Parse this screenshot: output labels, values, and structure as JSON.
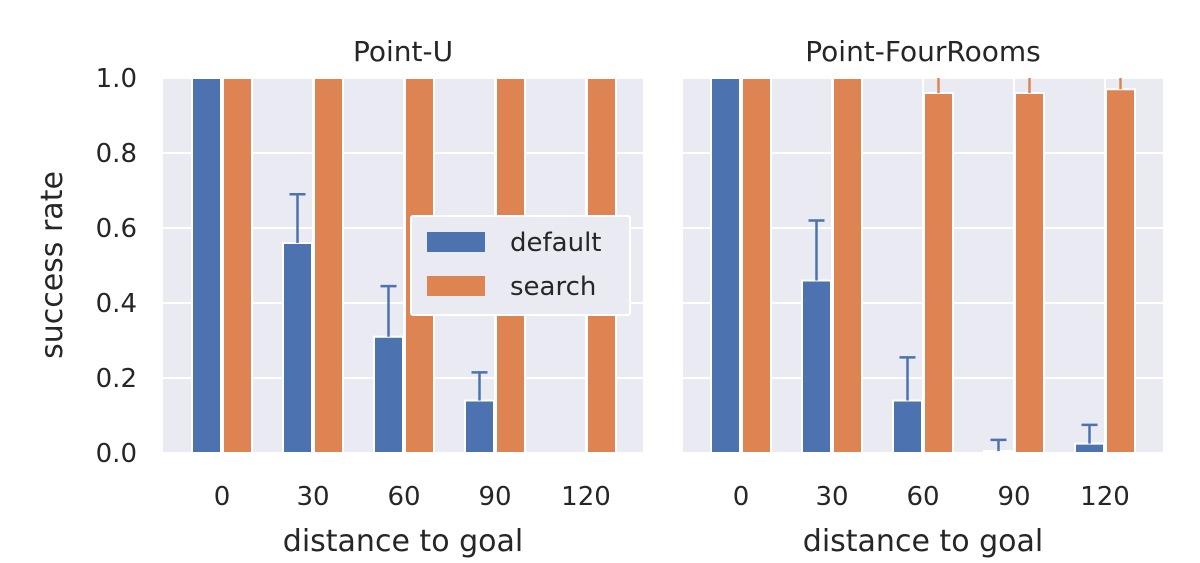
{
  "chart_data": [
    {
      "type": "bar",
      "title": "Point-U",
      "xlabel": "distance to goal",
      "ylabel": "success rate",
      "ylim": [
        0,
        1.0
      ],
      "yticks": [
        "0.0",
        "0.2",
        "0.4",
        "0.6",
        "0.8",
        "1.0"
      ],
      "grid": true,
      "legend": "center-right",
      "categories": [
        "0",
        "30",
        "60",
        "90",
        "120"
      ],
      "series": [
        {
          "name": "default",
          "color": "#4c72b0",
          "values": [
            1.0,
            0.56,
            0.31,
            0.14,
            0.0
          ],
          "err_upper": [
            1.0,
            0.69,
            0.445,
            0.215,
            0.0
          ]
        },
        {
          "name": "search",
          "color": "#dd8452",
          "values": [
            1.0,
            1.0,
            1.0,
            1.0,
            1.0
          ],
          "err_upper": [
            1.0,
            1.0,
            1.0,
            1.0,
            1.0
          ]
        }
      ]
    },
    {
      "type": "bar",
      "title": "Point-FourRooms",
      "xlabel": "distance to goal",
      "ylabel": "",
      "ylim": [
        0,
        1.0
      ],
      "grid": true,
      "categories": [
        "0",
        "30",
        "60",
        "90",
        "120"
      ],
      "series": [
        {
          "name": "default",
          "color": "#4c72b0",
          "values": [
            1.0,
            0.46,
            0.14,
            0.005,
            0.025
          ],
          "err_upper": [
            1.0,
            0.62,
            0.255,
            0.035,
            0.075
          ]
        },
        {
          "name": "search",
          "color": "#dd8452",
          "values": [
            1.0,
            1.0,
            0.96,
            0.96,
            0.97
          ],
          "err_upper": [
            1.0,
            1.0,
            1.02,
            1.02,
            1.02
          ]
        }
      ]
    }
  ]
}
